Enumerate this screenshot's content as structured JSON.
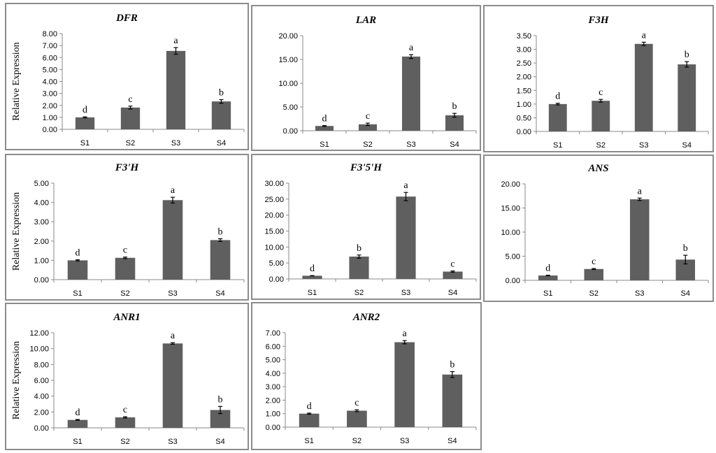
{
  "figure": {
    "colors": {
      "bar": "#5f5f5f",
      "border": "#8c8c8c",
      "axis": "#8a8a8a"
    }
  },
  "chart_data": [
    {
      "id": "DFR",
      "type": "bar",
      "title": "DFR",
      "ylabel": "Relative Expression",
      "categories": [
        "S1",
        "S2",
        "S3",
        "S4"
      ],
      "values": [
        1.0,
        1.82,
        6.55,
        2.33
      ],
      "errors": [
        0.04,
        0.12,
        0.28,
        0.15
      ],
      "letters": [
        "d",
        "c",
        "a",
        "b"
      ],
      "ylim": [
        0,
        8
      ],
      "yticks": [
        "0.00",
        "1.00",
        "2.00",
        "3.00",
        "4.00",
        "5.00",
        "6.00",
        "7.00",
        "8.00"
      ]
    },
    {
      "id": "LAR",
      "type": "bar",
      "title": "LAR",
      "ylabel": "",
      "categories": [
        "S1",
        "S2",
        "S3",
        "S4"
      ],
      "values": [
        1.0,
        1.35,
        15.6,
        3.25
      ],
      "errors": [
        0.08,
        0.25,
        0.4,
        0.4
      ],
      "letters": [
        "d",
        "c",
        "a",
        "b"
      ],
      "ylim": [
        0,
        20
      ],
      "yticks": [
        "0.00",
        "5.00",
        "10.00",
        "15.00",
        "20.00"
      ]
    },
    {
      "id": "F3H",
      "type": "bar",
      "title": "F3H",
      "ylabel": "",
      "categories": [
        "S1",
        "S2",
        "S3",
        "S4"
      ],
      "values": [
        1.0,
        1.12,
        3.2,
        2.45
      ],
      "errors": [
        0.03,
        0.05,
        0.06,
        0.1
      ],
      "letters": [
        "d",
        "c",
        "a",
        "b"
      ],
      "ylim": [
        0,
        3.5
      ],
      "yticks": [
        "0.00",
        "0.50",
        "1.00",
        "1.50",
        "2.00",
        "2.50",
        "3.00",
        "3.50"
      ]
    },
    {
      "id": "F3PH",
      "type": "bar",
      "title": "F3'H",
      "ylabel": "Relative Expression",
      "categories": [
        "S1",
        "S2",
        "S3",
        "S4"
      ],
      "values": [
        1.0,
        1.13,
        4.12,
        2.05
      ],
      "errors": [
        0.03,
        0.04,
        0.15,
        0.07
      ],
      "letters": [
        "d",
        "c",
        "a",
        "b"
      ],
      "ylim": [
        0,
        5
      ],
      "yticks": [
        "0.00",
        "1.00",
        "2.00",
        "3.00",
        "4.00",
        "5.00"
      ]
    },
    {
      "id": "F35H",
      "type": "bar",
      "title": "F3'5'H",
      "ylabel": "",
      "categories": [
        "S1",
        "S2",
        "S3",
        "S4"
      ],
      "values": [
        1.0,
        7.0,
        25.8,
        2.3
      ],
      "errors": [
        0.05,
        0.5,
        1.3,
        0.2
      ],
      "letters": [
        "d",
        "b",
        "a",
        "c"
      ],
      "ylim": [
        0,
        30
      ],
      "yticks": [
        "0.00",
        "5.00",
        "10.00",
        "15.00",
        "20.00",
        "25.00",
        "30.00"
      ]
    },
    {
      "id": "ANS",
      "type": "bar",
      "title": "ANS",
      "ylabel": "",
      "categories": [
        "S1",
        "S2",
        "S3",
        "S4"
      ],
      "values": [
        1.0,
        2.35,
        16.8,
        4.3
      ],
      "errors": [
        0.06,
        0.1,
        0.25,
        0.9
      ],
      "letters": [
        "d",
        "c",
        "a",
        "b"
      ],
      "ylim": [
        0,
        20
      ],
      "yticks": [
        "0.00",
        "5.00",
        "10.00",
        "15.00",
        "20.00"
      ]
    },
    {
      "id": "ANR1",
      "type": "bar",
      "title": "ANR1",
      "ylabel": "Relative Expression",
      "categories": [
        "S1",
        "S2",
        "S3",
        "S4"
      ],
      "values": [
        1.0,
        1.32,
        10.65,
        2.25
      ],
      "errors": [
        0.05,
        0.08,
        0.1,
        0.45
      ],
      "letters": [
        "d",
        "c",
        "a",
        "b"
      ],
      "ylim": [
        0,
        12
      ],
      "yticks": [
        "0.00",
        "2.00",
        "4.00",
        "6.00",
        "8.00",
        "10.00",
        "12.00"
      ]
    },
    {
      "id": "ANR2",
      "type": "bar",
      "title": "ANR2",
      "ylabel": "",
      "categories": [
        "S1",
        "S2",
        "S3",
        "S4"
      ],
      "values": [
        1.0,
        1.22,
        6.3,
        3.9
      ],
      "errors": [
        0.04,
        0.07,
        0.12,
        0.22
      ],
      "letters": [
        "d",
        "c",
        "a",
        "b"
      ],
      "ylim": [
        0,
        7
      ],
      "yticks": [
        "0.00",
        "1.00",
        "2.00",
        "3.00",
        "4.00",
        "5.00",
        "6.00",
        "7.00"
      ]
    }
  ]
}
